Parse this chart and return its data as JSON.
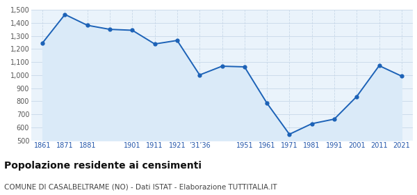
{
  "x_positions": [
    0,
    1,
    2,
    3,
    4,
    5,
    6,
    7,
    8,
    9,
    10,
    11,
    12,
    13,
    14,
    15,
    16
  ],
  "values": [
    1246,
    1464,
    1381,
    1350,
    1343,
    1238,
    1265,
    1001,
    1068,
    1063,
    785,
    547,
    628,
    663,
    836,
    1072,
    992
  ],
  "x_tick_labels": [
    "1861",
    "1871",
    "1881",
    "",
    "1901",
    "1911",
    "1921",
    "‱36",
    "",
    "1951",
    "1961",
    "1971",
    "1981",
    "1991",
    "2001",
    "2011",
    "2021"
  ],
  "line_color": "#1c62b7",
  "fill_color": "#daeaf8",
  "marker_size": 3.5,
  "line_width": 1.4,
  "ylim": [
    500,
    1500
  ],
  "yticks": [
    500,
    600,
    700,
    800,
    900,
    1000,
    1100,
    1200,
    1300,
    1400,
    1500
  ],
  "ytick_labels": [
    "500",
    "600",
    "700",
    "800",
    "900",
    "1,000",
    "1,100",
    "1,200",
    "1,300",
    "1,400",
    "1,500"
  ],
  "grid_color": "#c8d8e8",
  "background_color": "#eaf3fb",
  "title": "Popolazione residente ai censimenti",
  "subtitle": "COMUNE DI CASALBELTRAME (NO) - Dati ISTAT - Elaborazione TUTTITALIA.IT",
  "title_fontsize": 10,
  "subtitle_fontsize": 7.5,
  "ytick_color": "#555555",
  "xtick_color": "#2255aa",
  "tick_fontsize": 7
}
